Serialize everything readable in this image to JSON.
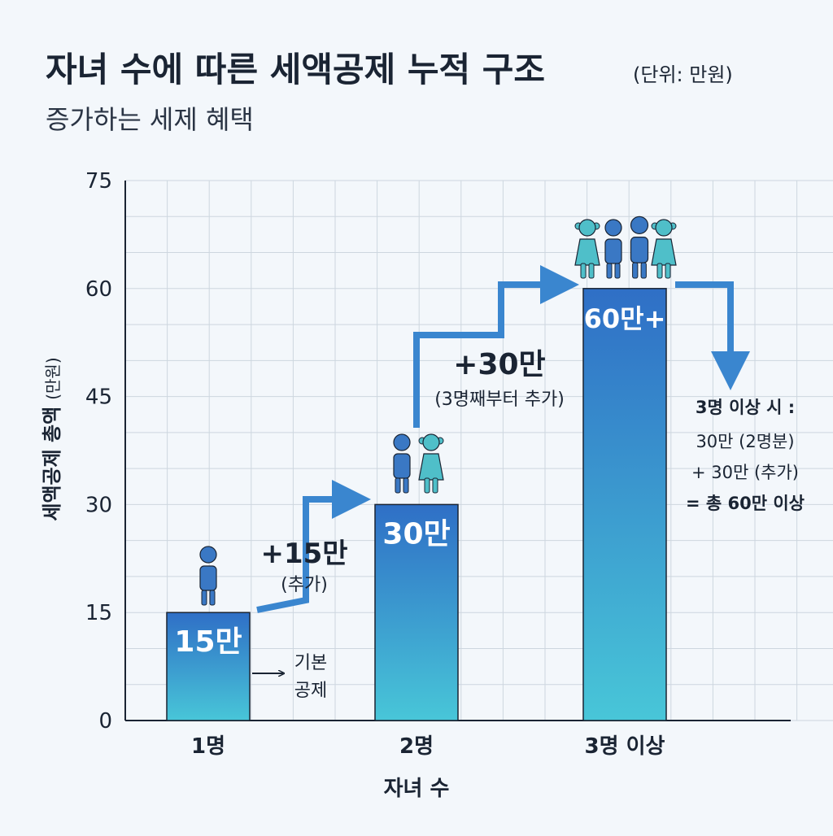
{
  "chart_data": {
    "type": "bar",
    "title": "자녀 수에 따른 세액공제 누적 구조",
    "title_unit": "(단위: 만원)",
    "subtitle": "증가하는 세제 혜택",
    "xlabel": "자녀 수",
    "ylabel": "세액공제 총액",
    "ylabel_unit": "(만원)",
    "ylim": [
      0,
      75
    ],
    "yticks": [
      0,
      15,
      30,
      45,
      60,
      75
    ],
    "grid": true,
    "categories": [
      "1명",
      "2명",
      "3명 이상"
    ],
    "values": [
      15,
      30,
      60
    ],
    "value_labels": [
      "15만",
      "30만",
      "60만+"
    ],
    "annotations": {
      "base": [
        "기본",
        "공제"
      ],
      "step1": {
        "value": "+15만",
        "note": "(추가)"
      },
      "step2": {
        "value": "+30만",
        "note": "(3명째부터 추가)"
      },
      "summary": [
        "3명 이상 시 :",
        "30만 (2명분)",
        "+ 30만 (추가)",
        "= 총 60만 이상"
      ]
    },
    "colors": {
      "bar_top": "#2f6fc6",
      "bar_bottom": "#48c6d8",
      "arrow": "#3a86cf",
      "text_dark": "#1a2433",
      "grid": "#cdd6df",
      "person_blue": "#3a78c4",
      "person_teal": "#4fbfc9"
    }
  }
}
